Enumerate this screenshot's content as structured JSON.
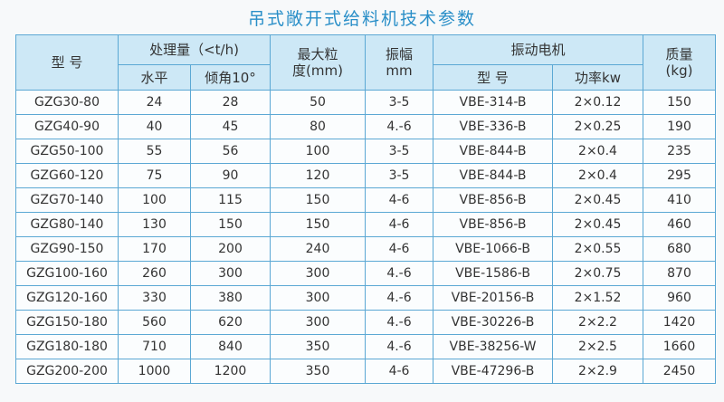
{
  "title": "吊式敞开式给料机技术参数",
  "table": {
    "header": {
      "model": "型 号",
      "capacity": "处理量（<t/h)",
      "horizontal": "水平",
      "incline": "倾角10°",
      "max_size": [
        "最大粒",
        "度(mm)"
      ],
      "amplitude": [
        "振幅",
        "mm"
      ],
      "motor": "振动电机",
      "motor_model": "型 号",
      "power": "功率kw",
      "mass": [
        "质量",
        "(kg)"
      ]
    },
    "rows": [
      [
        "GZG30-80",
        "24",
        "28",
        "50",
        "3-5",
        "VBE-314-B",
        "2×0.12",
        "150"
      ],
      [
        "GZG40-90",
        "40",
        "45",
        "80",
        "4.-6",
        "VBE-336-B",
        "2×0.25",
        "190"
      ],
      [
        "GZG50-100",
        "55",
        "56",
        "100",
        "3-5",
        "VBE-844-B",
        "2×0.4",
        "235"
      ],
      [
        "GZG60-120",
        "75",
        "90",
        "120",
        "3-5",
        "VBE-844-B",
        "2×0.4",
        "295"
      ],
      [
        "GZG70-140",
        "100",
        "115",
        "150",
        "4-6",
        "VBE-856-B",
        "2×0.45",
        "410"
      ],
      [
        "GZG80-140",
        "130",
        "150",
        "150",
        "4-6",
        "VBE-856-B",
        "2×0.45",
        "460"
      ],
      [
        "GZG90-150",
        "170",
        "200",
        "240",
        "4-6",
        "VBE-1066-B",
        "2×0.55",
        "680"
      ],
      [
        "GZG100-160",
        "260",
        "300",
        "300",
        "4.-6",
        "VBE-1586-B",
        "2×0.75",
        "870"
      ],
      [
        "GZG120-160",
        "330",
        "380",
        "300",
        "4.-6",
        "VBE-20156-B",
        "2×1.52",
        "960"
      ],
      [
        "GZG150-180",
        "560",
        "620",
        "300",
        "4.-6",
        "VBE-30226-B",
        "2×2.2",
        "1420"
      ],
      [
        "GZG180-180",
        "710",
        "840",
        "350",
        "4.-6",
        "VBE-38256-W",
        "2×2.5",
        "1660"
      ],
      [
        "GZG200-200",
        "1000",
        "1200",
        "350",
        "4-6",
        "VBE-47296-B",
        "2×2.9",
        "2450"
      ]
    ]
  }
}
